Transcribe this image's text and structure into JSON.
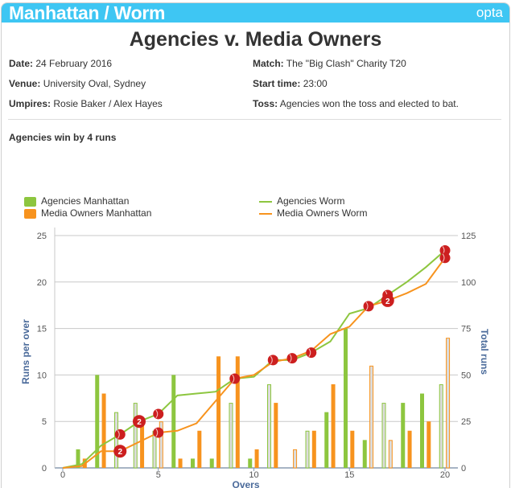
{
  "header": {
    "title": "Manhattan / Worm",
    "logo": "opta"
  },
  "match": {
    "title": "Agencies v. Media Owners",
    "date_label": "Date:",
    "date": "24 February 2016",
    "venue_label": "Venue:",
    "venue": "University Oval, Sydney",
    "umpires_label": "Umpires:",
    "umpires": "Rosie Baker / Alex Hayes",
    "match_label": "Match:",
    "match": "The \"Big Clash\" Charity T20",
    "start_label": "Start time:",
    "start": "23:00",
    "toss_label": "Toss:",
    "toss": "Agencies won the toss and elected to bat.",
    "result": "Agencies win by 4 runs"
  },
  "colors": {
    "agencies": "#8dc63f",
    "media": "#f7931e",
    "wicket": "#cc1f1f",
    "wicket_bar_fill": "#dcdcdc"
  },
  "chart_data": {
    "type": "bar+line",
    "xlabel": "Overs",
    "ylabel_left": "Runs per over",
    "ylabel_right": "Total runs",
    "xlim": [
      0,
      20
    ],
    "ylim_left": [
      0,
      25
    ],
    "ylim_right": [
      0,
      125
    ],
    "x_ticks": [
      "0",
      "5",
      "10",
      "15",
      "20"
    ],
    "y_left_ticks": [
      "0",
      "5",
      "10",
      "15",
      "20",
      "25"
    ],
    "y_right_ticks": [
      "0",
      "25",
      "50",
      "75",
      "100",
      "125"
    ],
    "legend": [
      "Agencies Manhattan",
      "Media Owners Manhattan",
      "Agencies Worm",
      "Media Owners Worm"
    ],
    "overs": [
      1,
      2,
      3,
      4,
      5,
      6,
      7,
      8,
      9,
      10,
      11,
      12,
      13,
      14,
      15,
      16,
      17,
      18,
      19,
      20
    ],
    "series": [
      {
        "name": "Agencies",
        "runs": [
          2,
          10,
          6,
          7,
          4,
          10,
          1,
          1,
          7,
          1,
          9,
          0,
          4,
          6,
          15,
          3,
          7,
          7,
          8,
          9
        ],
        "wickets": {
          "3": 1,
          "4": 2,
          "5": 1,
          "9": 1,
          "11": 1,
          "13": 1,
          "17": 1,
          "20": 1
        }
      },
      {
        "name": "Media Owners",
        "runs": [
          1,
          8,
          0,
          5,
          5,
          1,
          4,
          12,
          12,
          2,
          7,
          2,
          4,
          9,
          4,
          11,
          3,
          4,
          5,
          14
        ],
        "wickets": {
          "3": 2,
          "5": 1,
          "12": 1,
          "16": 1,
          "17": 2,
          "20": 1
        }
      }
    ]
  }
}
